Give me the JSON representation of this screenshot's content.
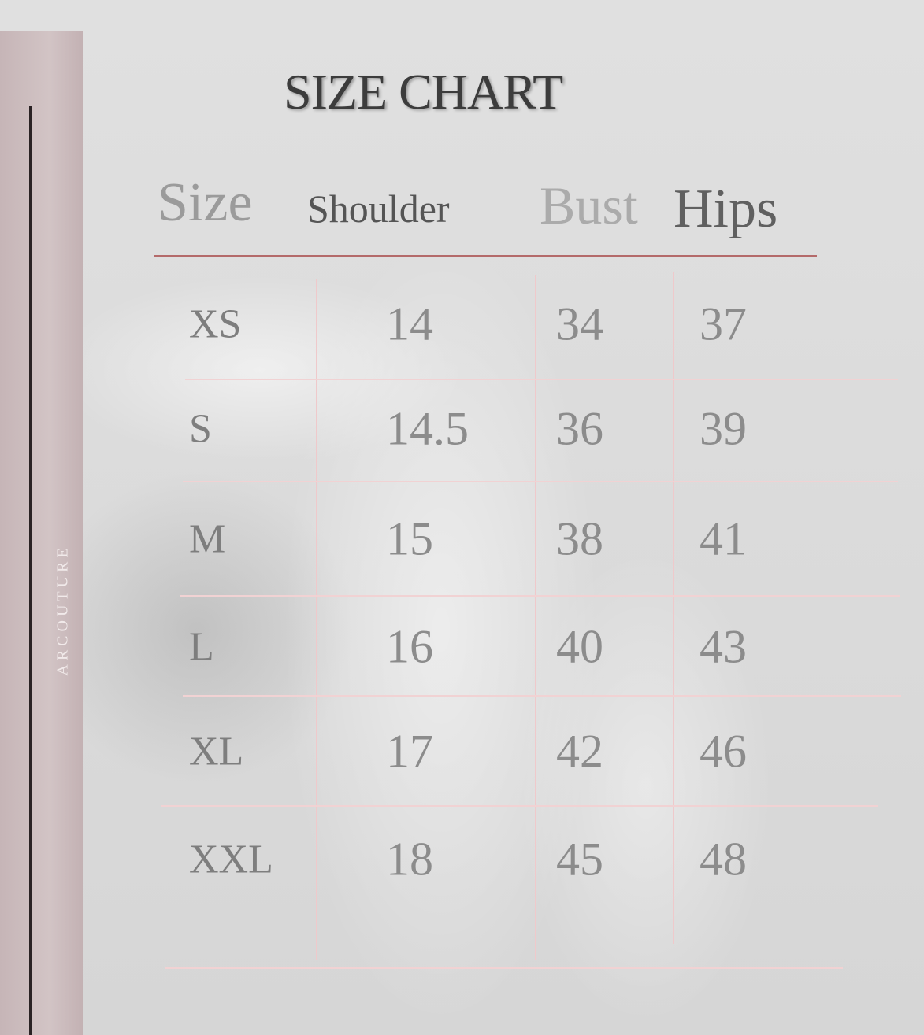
{
  "brand": "ARCOUTURE",
  "title": "SIZE CHART",
  "headers": [
    "Size",
    "Shoulder",
    "Bust",
    "Hips"
  ],
  "rows": [
    {
      "size": "XS",
      "shoulder": "14",
      "bust": "34",
      "hips": "37"
    },
    {
      "size": "S",
      "shoulder": "14.5",
      "bust": "36",
      "hips": "39"
    },
    {
      "size": "M",
      "shoulder": "15",
      "bust": "38",
      "hips": "41"
    },
    {
      "size": "L",
      "shoulder": "16",
      "bust": "40",
      "hips": "43"
    },
    {
      "size": "XL",
      "shoulder": "17",
      "bust": "42",
      "hips": "46"
    },
    {
      "size": "XXL",
      "shoulder": "18",
      "bust": "45",
      "hips": "48"
    }
  ],
  "colors": {
    "accent_line": "#b46a6a",
    "grid": "#f1d2d3",
    "strip": "#c9b8ba"
  }
}
